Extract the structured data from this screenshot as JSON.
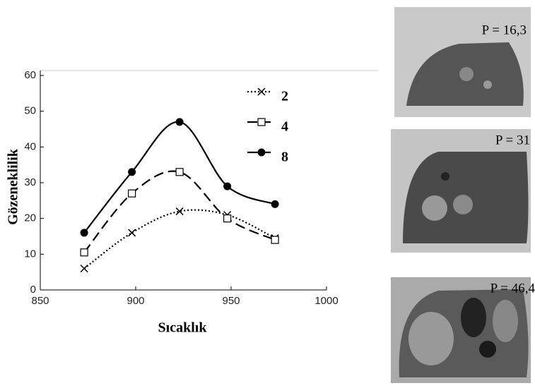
{
  "chart_data": {
    "type": "line",
    "xlabel": "Sıcaklık",
    "ylabel": "Gözeneklilik",
    "x": [
      873,
      898,
      923,
      948,
      973
    ],
    "series": [
      {
        "name": "2",
        "color": "#000000",
        "marker": "x",
        "dash": "dotted",
        "values": [
          6,
          16,
          22,
          21,
          14.5
        ]
      },
      {
        "name": "4",
        "color": "#000000",
        "marker": "square",
        "dash": "dashed",
        "values": [
          10.5,
          27,
          33,
          20,
          14
        ]
      },
      {
        "name": "8",
        "color": "#000000",
        "marker": "circle",
        "dash": "solid",
        "values": [
          16,
          33,
          47,
          29,
          24
        ]
      }
    ],
    "xlim": [
      850,
      1000
    ],
    "xticks": [
      850,
      900,
      950,
      1000
    ],
    "ylim": [
      0,
      60
    ],
    "yticks": [
      0,
      10,
      20,
      30,
      40,
      50,
      60
    ]
  },
  "photos": [
    {
      "label": "P = 16,3"
    },
    {
      "label": "P = 31"
    },
    {
      "label": "P = 46,4"
    }
  ]
}
